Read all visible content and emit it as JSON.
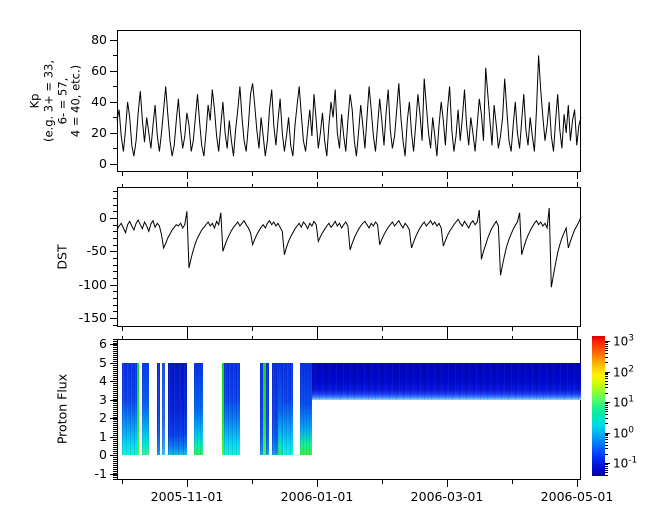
{
  "figure": {
    "background": "#ffffff",
    "line_color": "#000000"
  },
  "xaxis": {
    "tick_labels": [
      "2005-11-01",
      "2006-01-01",
      "2006-03-01",
      "2006-05-01"
    ],
    "major_fracs": [
      0.1509,
      0.431,
      0.7112,
      0.9914
    ],
    "minor_fracs": [
      0.0108,
      0.2909,
      0.5711,
      0.8513
    ]
  },
  "panels": {
    "kp": {
      "ylabel_lines": [
        "Kp",
        "(e.g. 3+ = 33,",
        "6- = 57,",
        "4 = 40, etc.)"
      ],
      "yticks": [
        0,
        20,
        40,
        60,
        80
      ],
      "yminors": [
        10,
        30,
        50,
        70
      ]
    },
    "dst": {
      "ylabel": "DST",
      "yticks": [
        0,
        -50,
        -100,
        -150
      ],
      "yminors": [
        40,
        30,
        20,
        10,
        -10,
        -20,
        -30,
        -40,
        -60,
        -70,
        -80,
        -90,
        -110,
        -120,
        -130,
        -140,
        -160
      ]
    },
    "proton": {
      "ylabel": "Proton Flux",
      "yticks": [
        -1,
        0,
        1,
        2,
        3,
        4,
        5,
        6
      ]
    }
  },
  "colorbar": {
    "scale": "log",
    "colormap": "jet",
    "labels": [
      {
        "base": "10",
        "exp": "3"
      },
      {
        "base": "10",
        "exp": "2"
      },
      {
        "base": "10",
        "exp": "1"
      },
      {
        "base": "10",
        "exp": "0"
      },
      {
        "base": "10",
        "exp": "-1"
      }
    ]
  },
  "chart_data": [
    {
      "type": "line",
      "title": "",
      "ylabel": "Kp (e.g. 3+ = 33, 6- = 57, 4 = 40, etc.)",
      "ylim": [
        -5.2,
        86.4
      ],
      "yticks": [
        0,
        20,
        40,
        60,
        80
      ],
      "x_ticks": [
        "2005-11-01",
        "2006-01-01",
        "2006-03-01",
        "2006-05-01"
      ],
      "grid": false,
      "series": [
        {
          "name": "Kp",
          "color": "#000000",
          "values": [
            28,
            35,
            18,
            8,
            22,
            40,
            30,
            12,
            5,
            15,
            33,
            47,
            28,
            14,
            30,
            20,
            10,
            25,
            38,
            18,
            8,
            20,
            35,
            50,
            32,
            15,
            5,
            12,
            28,
            42,
            22,
            10,
            18,
            33,
            25,
            8,
            15,
            30,
            45,
            27,
            12,
            5,
            20,
            38,
            28,
            48,
            35,
            18,
            8,
            25,
            40,
            20,
            10,
            28,
            15,
            5,
            22,
            35,
            50,
            30,
            15,
            8,
            25,
            45,
            52,
            38,
            22,
            10,
            30,
            18,
            5,
            15,
            35,
            48,
            25,
            12,
            28,
            42,
            20,
            8,
            18,
            30,
            12,
            5,
            25,
            38,
            50,
            32,
            15,
            8,
            22,
            35,
            18,
            45,
            28,
            10,
            20,
            33,
            15,
            5,
            25,
            40,
            30,
            48,
            20,
            10,
            32,
            18,
            8,
            28,
            45,
            35,
            15,
            5,
            20,
            38,
            25,
            10,
            30,
            50,
            35,
            18,
            8,
            25,
            42,
            28,
            12,
            33,
            48,
            22,
            10,
            18,
            35,
            52,
            30,
            15,
            5,
            28,
            40,
            20,
            8,
            25,
            45,
            32,
            15,
            55,
            38,
            20,
            10,
            30,
            18,
            5,
            25,
            40,
            28,
            12,
            35,
            50,
            22,
            8,
            18,
            35,
            15,
            30,
            48,
            25,
            12,
            30,
            20,
            8,
            25,
            42,
            32,
            15,
            62,
            45,
            28,
            12,
            38,
            25,
            10,
            18,
            30,
            55,
            35,
            15,
            8,
            25,
            40,
            20,
            10,
            28,
            45,
            22,
            12,
            30,
            18,
            8,
            35,
            70,
            48,
            30,
            15,
            25,
            40,
            18,
            8,
            28,
            45,
            22,
            10,
            32,
            20,
            38,
            15,
            28,
            35,
            12,
            25,
            30
          ]
        }
      ]
    },
    {
      "type": "line",
      "title": "",
      "ylabel": "DST",
      "ylim": [
        -163.5,
        46.5
      ],
      "yticks": [
        0,
        -50,
        -100,
        -150
      ],
      "x_ticks": [
        "2005-11-01",
        "2006-01-01",
        "2006-03-01",
        "2006-05-01"
      ],
      "grid": false,
      "series": [
        {
          "name": "DST",
          "color": "#000000",
          "values": [
            -18,
            -12,
            -8,
            -15,
            -22,
            -10,
            -5,
            -12,
            -18,
            -8,
            -3,
            -10,
            -16,
            -6,
            -12,
            -20,
            -9,
            -4,
            -14,
            -8,
            -12,
            -25,
            -45,
            -38,
            -30,
            -24,
            -18,
            -14,
            -10,
            -12,
            -8,
            -15,
            -10,
            10,
            -75,
            -60,
            -48,
            -38,
            -30,
            -24,
            -18,
            -14,
            -10,
            -6,
            -12,
            -8,
            -15,
            -5,
            -10,
            8,
            -50,
            -40,
            -32,
            -25,
            -19,
            -14,
            -10,
            -6,
            -12,
            -8,
            -4,
            -10,
            -15,
            -22,
            -40,
            -32,
            -25,
            -19,
            -14,
            -10,
            -15,
            -8,
            -4,
            -10,
            -6,
            -12,
            -8,
            -14,
            -20,
            -55,
            -44,
            -35,
            -28,
            -22,
            -16,
            -12,
            -8,
            -14,
            -6,
            -10,
            -16,
            -8,
            -12,
            -5,
            -10,
            -35,
            -28,
            -22,
            -17,
            -12,
            -8,
            -14,
            -10,
            -5,
            -12,
            -8,
            -15,
            -10,
            -6,
            -12,
            -48,
            -38,
            -30,
            -23,
            -17,
            -12,
            -8,
            -5,
            -10,
            -15,
            -8,
            -12,
            -6,
            -10,
            -40,
            -32,
            -25,
            -19,
            -14,
            -10,
            -6,
            -12,
            -8,
            -4,
            -10,
            -15,
            -8,
            -12,
            -18,
            -45,
            -36,
            -28,
            -21,
            -15,
            -10,
            -6,
            -12,
            -8,
            -4,
            -10,
            -6,
            -12,
            -8,
            -15,
            -42,
            -34,
            -26,
            -20,
            -15,
            -10,
            -6,
            -2,
            -8,
            -12,
            -5,
            -10,
            -15,
            -8,
            -4,
            -10,
            -6,
            12,
            -62,
            -50,
            -40,
            -30,
            -22,
            -15,
            -10,
            -5,
            -12,
            -86,
            -70,
            -55,
            -42,
            -32,
            -24,
            -17,
            -11,
            -6,
            8,
            -55,
            -44,
            -34,
            -26,
            -19,
            -13,
            -8,
            -4,
            -10,
            -6,
            -12,
            -8,
            -15,
            15,
            -104,
            -85,
            -68,
            -52,
            -40,
            -30,
            -22,
            -15,
            -45,
            -35,
            -26,
            -18,
            -12,
            -6,
            2
          ]
        }
      ]
    },
    {
      "type": "heatmap",
      "title": "",
      "ylabel": "Proton Flux",
      "ylim": [
        -1.35,
        6.27
      ],
      "yticks": [
        -1,
        0,
        1,
        2,
        3,
        4,
        5,
        6
      ],
      "data_y_range": [
        0,
        5
      ],
      "colorbar_range_log10": [
        -1,
        3
      ],
      "colormap": "jet",
      "bands": [
        {
          "x0": 0.0097,
          "x1": 0.0431,
          "style": "cyan_bottom"
        },
        {
          "x0": 0.0431,
          "x1": 0.0463,
          "style": "green_line"
        },
        {
          "x0": 0.0528,
          "x1": 0.0679,
          "style": "green_cyan_bottom"
        },
        {
          "x0": 0.0851,
          "x1": 0.0927,
          "style": "blue"
        },
        {
          "x0": 0.0959,
          "x1": 0.1024,
          "style": "blue_light"
        },
        {
          "x0": 0.1088,
          "x1": 0.1498,
          "style": "deep_blue"
        },
        {
          "x0": 0.1649,
          "x1": 0.1843,
          "style": "green_glow"
        },
        {
          "x0": 0.2252,
          "x1": 0.2295,
          "style": "green_line"
        },
        {
          "x0": 0.2295,
          "x1": 0.2651,
          "style": "cyan_bottom"
        },
        {
          "x0": 0.3082,
          "x1": 0.3147,
          "style": "blue"
        },
        {
          "x0": 0.3147,
          "x1": 0.32,
          "style": "green_line"
        },
        {
          "x0": 0.32,
          "x1": 0.3265,
          "style": "blue"
        },
        {
          "x0": 0.333,
          "x1": 0.347,
          "style": "blue"
        },
        {
          "x0": 0.347,
          "x1": 0.356,
          "style": "green_glow"
        },
        {
          "x0": 0.356,
          "x1": 0.3804,
          "style": "cyan_bottom"
        },
        {
          "x0": 0.3944,
          "x1": 0.4203,
          "style": "green_glow2"
        }
      ],
      "upper_band": {
        "x0": 0.4203,
        "x1": 1.0,
        "y0": 3,
        "y1": 5,
        "style": "dark_blue_band"
      }
    }
  ]
}
